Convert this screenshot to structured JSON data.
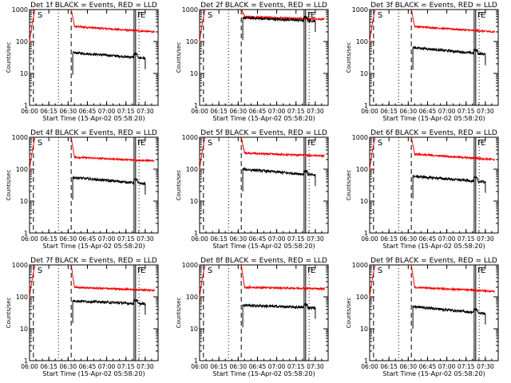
{
  "chart_data": [
    {
      "type": "line",
      "title": "Det 1f BLACK = Events, RED = LLD",
      "xlabel": "Start Time (15-Apr-02 05:58:20)",
      "ylabel": "Counts/sec",
      "yscale": "log",
      "ylim": [
        1,
        1000
      ],
      "xlim": [
        0,
        1.6667
      ],
      "xticks": [
        "06:00",
        "06:15",
        "06:30",
        "06:45",
        "07:00",
        "07:15",
        "07:30"
      ],
      "yticks": [
        "1",
        "10",
        "100",
        "1000"
      ],
      "markers": [
        {
          "label": "S",
          "x": 0.05
        },
        {
          "label": "F",
          "x": 1.375
        },
        {
          "label": "E",
          "x": 1.42
        }
      ],
      "series": [
        {
          "name": "RED = LLD",
          "color": "#ff0000",
          "peak_level": 1000,
          "plateau_start": 300,
          "plateau_end": 200
        },
        {
          "name": "BLACK = Events",
          "color": "#000000",
          "start_level": 45,
          "end_level": 30
        }
      ]
    },
    {
      "type": "line",
      "title": "Det 2f BLACK = Events, RED = LLD",
      "xlabel": "Start Time (15-Apr-02 05:58:20)",
      "ylabel": "Counts/sec",
      "yscale": "log",
      "ylim": [
        1,
        1000
      ],
      "xlim": [
        0,
        1.6667
      ],
      "xticks": [
        "06:00",
        "06:15",
        "06:30",
        "06:45",
        "07:00",
        "07:15",
        "07:30"
      ],
      "yticks": [
        "1",
        "10",
        "100",
        "1000"
      ],
      "markers": [
        {
          "label": "S",
          "x": 0.05
        },
        {
          "label": "F",
          "x": 1.375
        },
        {
          "label": "E",
          "x": 1.42
        }
      ],
      "series": [
        {
          "name": "RED = LLD",
          "color": "#ff0000",
          "peak_level": 1000,
          "plateau_start": 600,
          "plateau_end": 500
        },
        {
          "name": "BLACK = Events",
          "color": "#000000",
          "start_level": 550,
          "end_level": 440
        }
      ]
    },
    {
      "type": "line",
      "title": "Det 3f BLACK = Events, RED = LLD",
      "xlabel": "Start Time (15-Apr-02 05:58:20)",
      "ylabel": "Counts/sec",
      "yscale": "log",
      "ylim": [
        1,
        1000
      ],
      "xlim": [
        0,
        1.6667
      ],
      "xticks": [
        "06:00",
        "06:15",
        "06:30",
        "06:45",
        "07:00",
        "07:15",
        "07:30"
      ],
      "yticks": [
        "1",
        "10",
        "100",
        "1000"
      ],
      "markers": [
        {
          "label": "S",
          "x": 0.05
        },
        {
          "label": "F",
          "x": 1.375
        },
        {
          "label": "E",
          "x": 1.42
        }
      ],
      "series": [
        {
          "name": "RED = LLD",
          "color": "#ff0000",
          "peak_level": 1000,
          "plateau_start": 300,
          "plateau_end": 200
        },
        {
          "name": "BLACK = Events",
          "color": "#000000",
          "start_level": 65,
          "end_level": 40
        }
      ]
    },
    {
      "type": "line",
      "title": "Det 4f BLACK = Events, RED = LLD",
      "xlabel": "Start Time (15-Apr-02 05:58:20)",
      "ylabel": "Counts/sec",
      "yscale": "log",
      "ylim": [
        1,
        1000
      ],
      "xlim": [
        0,
        1.6667
      ],
      "xticks": [
        "06:00",
        "06:15",
        "06:30",
        "06:45",
        "07:00",
        "07:15",
        "07:30"
      ],
      "yticks": [
        "1",
        "10",
        "100",
        "1000"
      ],
      "markers": [
        {
          "label": "S",
          "x": 0.05
        },
        {
          "label": "F",
          "x": 1.375
        },
        {
          "label": "E",
          "x": 1.42
        }
      ],
      "series": [
        {
          "name": "RED = LLD",
          "color": "#ff0000",
          "peak_level": 1000,
          "plateau_start": 240,
          "plateau_end": 180
        },
        {
          "name": "BLACK = Events",
          "color": "#000000",
          "start_level": 55,
          "end_level": 35
        }
      ]
    },
    {
      "type": "line",
      "title": "Det 5f BLACK = Events, RED = LLD",
      "xlabel": "Start Time (15-Apr-02 05:58:20)",
      "ylabel": "Counts/sec",
      "yscale": "log",
      "ylim": [
        1,
        1000
      ],
      "xlim": [
        0,
        1.6667
      ],
      "xticks": [
        "06:00",
        "06:15",
        "06:30",
        "06:45",
        "07:00",
        "07:15",
        "07:30"
      ],
      "yticks": [
        "1",
        "10",
        "100",
        "1000"
      ],
      "markers": [
        {
          "label": "S",
          "x": 0.05
        },
        {
          "label": "F",
          "x": 1.375
        },
        {
          "label": "E",
          "x": 1.42
        }
      ],
      "series": [
        {
          "name": "RED = LLD",
          "color": "#ff0000",
          "peak_level": 1000,
          "plateau_start": 320,
          "plateau_end": 260
        },
        {
          "name": "BLACK = Events",
          "color": "#000000",
          "start_level": 100,
          "end_level": 65
        }
      ]
    },
    {
      "type": "line",
      "title": "Det 6f BLACK = Events, RED = LLD",
      "xlabel": "Start Time (15-Apr-02 05:58:20)",
      "ylabel": "Counts/sec",
      "yscale": "log",
      "ylim": [
        1,
        1000
      ],
      "xlim": [
        0,
        1.6667
      ],
      "xticks": [
        "06:00",
        "06:15",
        "06:30",
        "06:45",
        "07:00",
        "07:15",
        "07:30"
      ],
      "yticks": [
        "1",
        "10",
        "100",
        "1000"
      ],
      "markers": [
        {
          "label": "S",
          "x": 0.05
        },
        {
          "label": "F",
          "x": 1.375
        },
        {
          "label": "E",
          "x": 1.42
        }
      ],
      "series": [
        {
          "name": "RED = LLD",
          "color": "#ff0000",
          "peak_level": 1000,
          "plateau_start": 300,
          "plateau_end": 200
        },
        {
          "name": "BLACK = Events",
          "color": "#000000",
          "start_level": 60,
          "end_level": 40
        }
      ]
    },
    {
      "type": "line",
      "title": "Det 7f BLACK = Events, RED = LLD",
      "xlabel": "Start Time (15-Apr-02 05:58:20)",
      "ylabel": "Counts/sec",
      "yscale": "log",
      "ylim": [
        1,
        1000
      ],
      "xlim": [
        0,
        1.6667
      ],
      "xticks": [
        "06:00",
        "06:15",
        "06:30",
        "06:45",
        "07:00",
        "07:15",
        "07:30"
      ],
      "yticks": [
        "1",
        "10",
        "100",
        "1000"
      ],
      "markers": [
        {
          "label": "S",
          "x": 0.05
        },
        {
          "label": "F",
          "x": 1.375
        },
        {
          "label": "E",
          "x": 1.42
        }
      ],
      "series": [
        {
          "name": "RED = LLD",
          "color": "#ff0000",
          "peak_level": 1000,
          "plateau_start": 200,
          "plateau_end": 160
        },
        {
          "name": "BLACK = Events",
          "color": "#000000",
          "start_level": 75,
          "end_level": 60
        }
      ]
    },
    {
      "type": "line",
      "title": "Det 8f BLACK = Events, RED = LLD",
      "xlabel": "Start Time (15-Apr-02 05:58:20)",
      "ylabel": "Counts/sec",
      "yscale": "log",
      "ylim": [
        1,
        1000
      ],
      "xlim": [
        0,
        1.6667
      ],
      "xticks": [
        "06:00",
        "06:15",
        "06:30",
        "06:45",
        "07:00",
        "07:15",
        "07:30"
      ],
      "yticks": [
        "1",
        "10",
        "100",
        "1000"
      ],
      "markers": [
        {
          "label": "S",
          "x": 0.05
        },
        {
          "label": "F",
          "x": 1.375
        },
        {
          "label": "E",
          "x": 1.42
        }
      ],
      "series": [
        {
          "name": "RED = LLD",
          "color": "#ff0000",
          "peak_level": 1000,
          "plateau_start": 200,
          "plateau_end": 180
        },
        {
          "name": "BLACK = Events",
          "color": "#000000",
          "start_level": 55,
          "end_level": 45
        }
      ]
    },
    {
      "type": "line",
      "title": "Det 9f BLACK = Events, RED = LLD",
      "xlabel": "Start Time (15-Apr-02 05:58:20)",
      "ylabel": "Counts/sec",
      "yscale": "log",
      "ylim": [
        1,
        1000
      ],
      "xlim": [
        0,
        1.6667
      ],
      "xticks": [
        "06:00",
        "06:15",
        "06:30",
        "06:45",
        "07:00",
        "07:15",
        "07:30"
      ],
      "yticks": [
        "1",
        "10",
        "100",
        "1000"
      ],
      "markers": [
        {
          "label": "S",
          "x": 0.05
        },
        {
          "label": "F",
          "x": 1.375
        },
        {
          "label": "E",
          "x": 1.42
        }
      ],
      "series": [
        {
          "name": "RED = LLD",
          "color": "#ff0000",
          "peak_level": 1000,
          "plateau_start": 200,
          "plateau_end": 150
        },
        {
          "name": "BLACK = Events",
          "color": "#000000",
          "start_level": 50,
          "end_level": 30
        }
      ]
    }
  ]
}
